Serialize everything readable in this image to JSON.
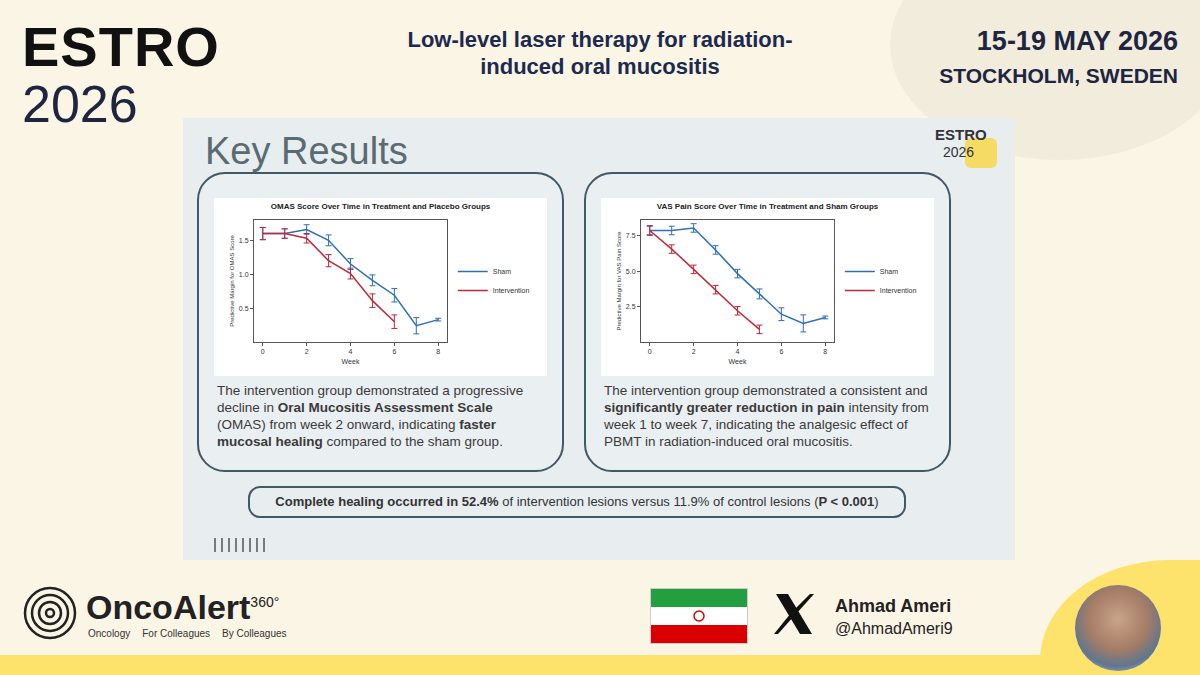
{
  "header": {
    "logo": [
      "ESTRO",
      "2026"
    ],
    "title": "Low-level laser therapy for radiation-induced oral mucositis",
    "date": "15-19 MAY 2026",
    "place": "STOCKHOLM, SWEDEN"
  },
  "slide": {
    "title": "Key Results",
    "logo": [
      "ESTRO",
      "2026"
    ],
    "panels": [
      {
        "text": [
          {
            "text": "The intervention group demonstrated a progressive decline in ",
            "bold": false
          },
          {
            "text": "Oral Mucositis Assessment Scale",
            "bold": true
          },
          {
            "text": " (OMAS) from week 2 onward, indicating ",
            "bold": false
          },
          {
            "text": "faster mucosal healing",
            "bold": true
          },
          {
            "text": " compared to the sham group.",
            "bold": false
          }
        ]
      },
      {
        "text": [
          {
            "text": "The intervention group demonstrated a consistent and ",
            "bold": false
          },
          {
            "text": "significantly greater reduction in pain",
            "bold": true
          },
          {
            "text": " intensity from week 1 to week 7, indicating the analgesic effect of PBMT in radiation-induced oral mucositis.",
            "bold": false
          }
        ]
      }
    ],
    "summary": [
      {
        "text": "Complete healing occurred in ",
        "bold": true
      },
      {
        "text": "52.4%",
        "bold": true
      },
      {
        "text": " of intervention lesions versus 11.9% of control lesions (",
        "bold": false
      },
      {
        "text": "P < 0.001",
        "bold": true
      },
      {
        "text": ")",
        "bold": false
      }
    ]
  },
  "footer": {
    "brand": "OncoAlert",
    "brand_sup": "360°",
    "tagline": [
      "Oncology",
      "For Colleagues",
      "By Colleagues"
    ],
    "author": "Ahmad Ameri",
    "handle": "@AhmadAmeri9"
  },
  "chart_data": [
    {
      "type": "line",
      "title": "OMAS Score Over Time in Treatment and Placebo Groups",
      "x_label": "Week",
      "y_label": "Predictive Margin for OMAS Score",
      "x": [
        0,
        1,
        2,
        3,
        4,
        5,
        6,
        7,
        8
      ],
      "series": [
        {
          "name": "Sham",
          "color": "#2e6fb7",
          "values": [
            1.6,
            1.6,
            1.66,
            1.5,
            1.15,
            0.91,
            0.69,
            0.24,
            0.33
          ],
          "errors": [
            0.09,
            0.07,
            0.07,
            0.08,
            0.08,
            0.08,
            0.1,
            0.12,
            0.02
          ]
        },
        {
          "name": "Intervention",
          "color": "#c0283a",
          "values": [
            1.6,
            1.6,
            1.53,
            1.2,
            1.01,
            0.61,
            0.3,
            null,
            null
          ],
          "errors": [
            0.09,
            0.07,
            0.07,
            0.09,
            0.08,
            0.1,
            0.1,
            null,
            null
          ]
        }
      ],
      "xlim": [
        -0.4,
        8.4
      ],
      "xticks": [
        0,
        2,
        4,
        6,
        8
      ],
      "ylim": [
        0,
        1.8
      ],
      "yticks": [
        0.5,
        {
          "value": 1,
          "label": "1.0"
        },
        1.5
      ],
      "grid": false,
      "legend": "right"
    },
    {
      "type": "line",
      "title": "VAS Pain Score Over Time in Treatment and Sham Groups",
      "x_label": "Week",
      "y_label": "Predictive Margin for VAS Pain Score",
      "x": [
        0,
        1,
        2,
        3,
        4,
        5,
        6,
        7,
        8
      ],
      "series": [
        {
          "name": "Sham",
          "color": "#2e6fb7",
          "values": [
            7.86,
            7.86,
            8.04,
            6.49,
            4.82,
            3.39,
            1.96,
            1.31,
            1.73
          ],
          "errors": [
            0.35,
            0.3,
            0.3,
            0.3,
            0.3,
            0.35,
            0.45,
            0.6,
            0.1
          ]
        },
        {
          "name": "Intervention",
          "color": "#c0283a",
          "values": [
            7.86,
            6.55,
            5.12,
            3.69,
            2.2,
            0.89,
            null,
            null,
            null
          ],
          "errors": [
            0.3,
            0.3,
            0.3,
            0.3,
            0.3,
            0.3,
            null,
            null,
            null
          ]
        }
      ],
      "xlim": [
        -0.4,
        8.4
      ],
      "xticks": [
        0,
        2,
        4,
        6,
        8
      ],
      "ylim": [
        0,
        8.6
      ],
      "yticks": [
        2.5,
        {
          "value": 5,
          "label": "5.0"
        },
        7.5
      ],
      "grid": false,
      "legend": "right"
    }
  ]
}
